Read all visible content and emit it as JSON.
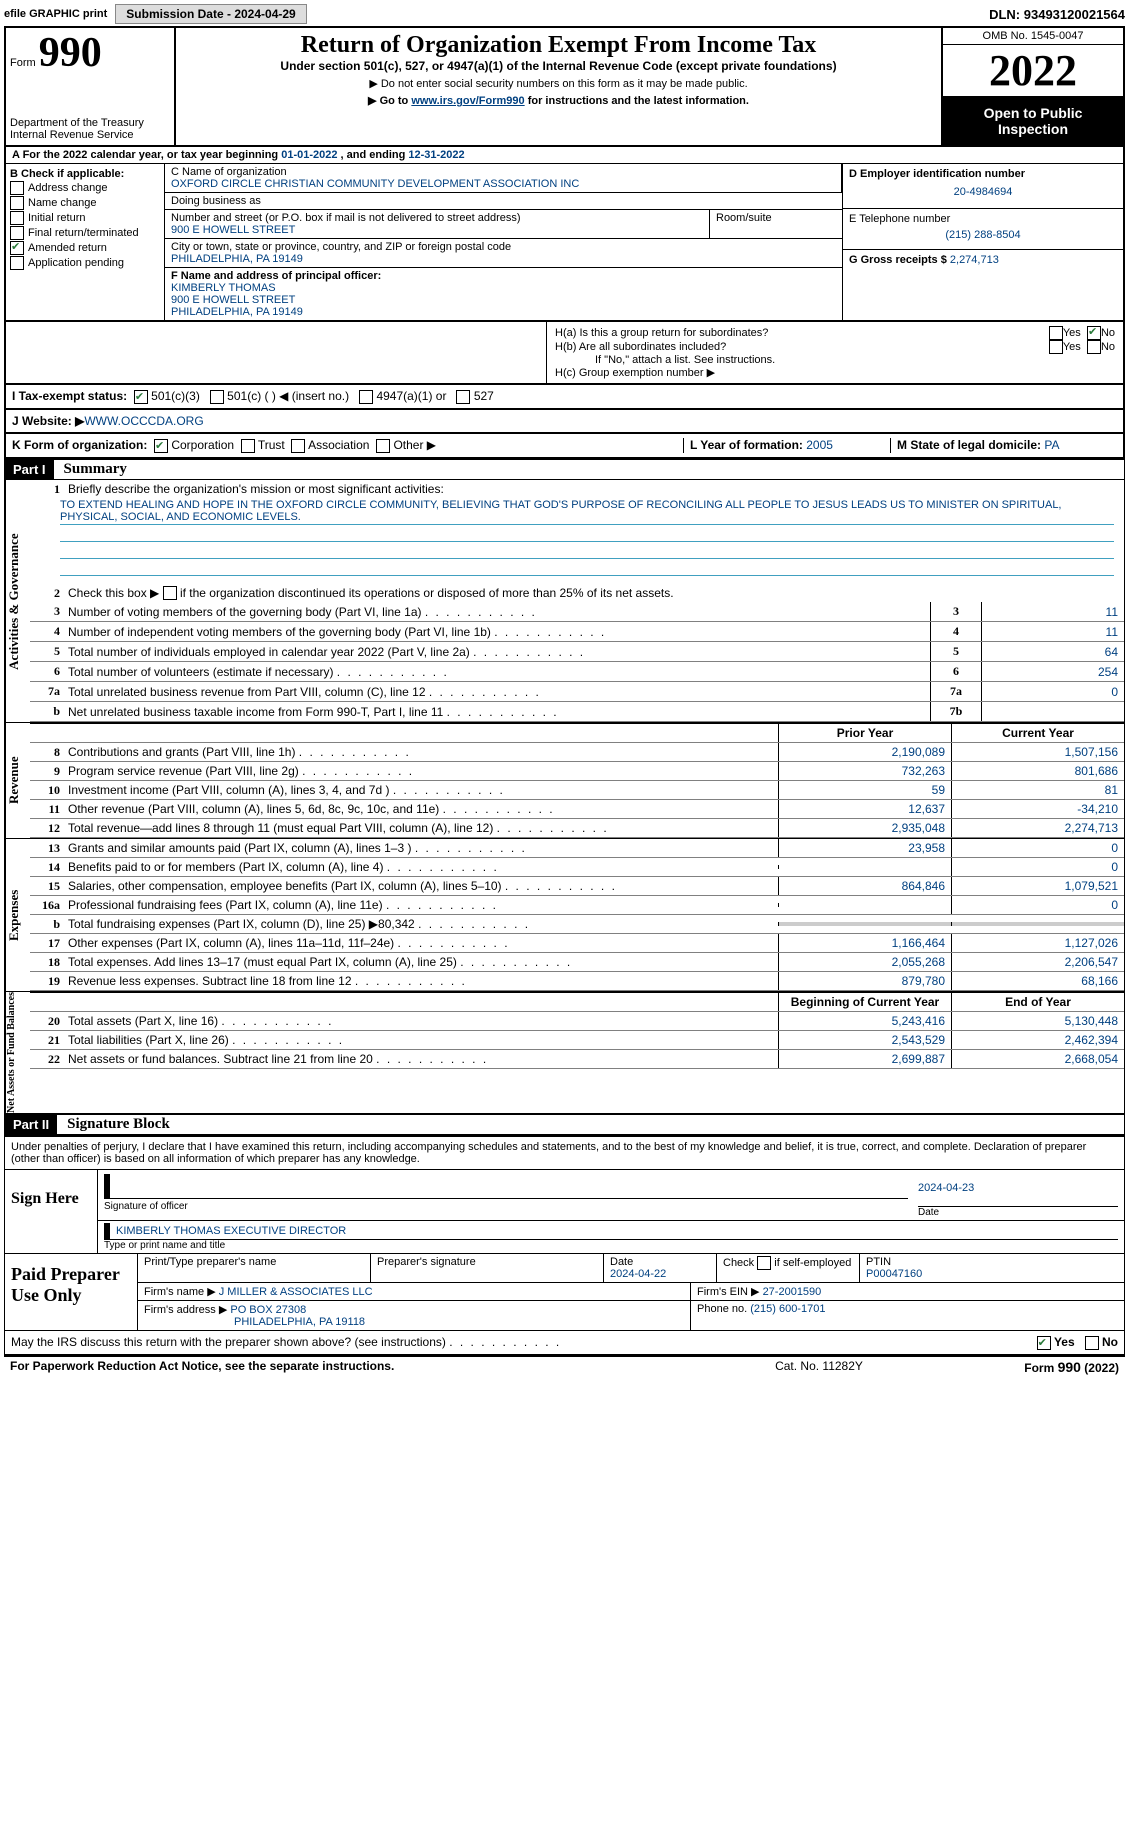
{
  "topbar": {
    "efile": "efile GRAPHIC print ",
    "submission_label": "Submission Date - ",
    "submission_date": "2024-04-29",
    "dln_label": "DLN: ",
    "dln": "93493120021564"
  },
  "header": {
    "form_prefix": "Form",
    "form_number": "990",
    "dept": "Department of the Treasury\nInternal Revenue Service",
    "title": "Return of Organization Exempt From Income Tax",
    "subtitle": "Under section 501(c), 527, or 4947(a)(1) of the Internal Revenue Code (except private foundations)",
    "note1": "▶ Do not enter social security numbers on this form as it may be made public.",
    "note2_prefix": "▶ Go to ",
    "note2_link": "www.irs.gov/Form990",
    "note2_suffix": " for instructions and the latest information.",
    "omb": "OMB No. 1545-0047",
    "year": "2022",
    "open_public": "Open to Public Inspection"
  },
  "calendar": {
    "prefix": "A  For the 2022 calendar year, or tax year beginning ",
    "begin": "01-01-2022",
    "mid": "  , and ending ",
    "end": "12-31-2022"
  },
  "colB": {
    "header": "B Check if applicable:",
    "items": [
      {
        "label": "Address change",
        "checked": false
      },
      {
        "label": "Name change",
        "checked": false
      },
      {
        "label": "Initial return",
        "checked": false
      },
      {
        "label": "Final return/terminated",
        "checked": false
      },
      {
        "label": "Amended return",
        "checked": true
      },
      {
        "label": "Application pending",
        "checked": false
      }
    ]
  },
  "colC": {
    "name_label": "C Name of organization",
    "name": "OXFORD CIRCLE CHRISTIAN COMMUNITY DEVELOPMENT ASSOCIATION INC",
    "dba_label": "Doing business as",
    "dba": "",
    "addr_label": "Number and street (or P.O. box if mail is not delivered to street address)",
    "room_label": "Room/suite",
    "addr": "900 E HOWELL STREET",
    "city_label": "City or town, state or province, country, and ZIP or foreign postal code",
    "city": "PHILADELPHIA, PA  19149",
    "officer_label": "F Name and address of principal officer:",
    "officer_name": "KIMBERLY THOMAS",
    "officer_addr1": "900 E HOWELL STREET",
    "officer_addr2": "PHILADELPHIA, PA  19149"
  },
  "colD": {
    "ein_label": "D Employer identification number",
    "ein": "20-4984694",
    "tel_label": "E Telephone number",
    "tel": "(215) 288-8504",
    "gross_label": "G Gross receipts $ ",
    "gross": "2,274,713"
  },
  "rowH": {
    "ha_label": "H(a)  Is this a group return for subordinates?",
    "ha_yes": "Yes",
    "ha_no": "No",
    "ha_checked": "No",
    "hb_label": "H(b)  Are all subordinates included?",
    "hb_note": "If \"No,\" attach a list. See instructions.",
    "hc_label": "H(c)  Group exemption number ▶"
  },
  "rowI": {
    "label": "I  Tax-exempt status:",
    "opts": [
      "501(c)(3)",
      "501(c) (  ) ◀ (insert no.)",
      "4947(a)(1) or",
      "527"
    ],
    "checked_idx": 0
  },
  "rowJ": {
    "label": "J  Website: ▶  ",
    "value": "WWW.OCCCDA.ORG"
  },
  "rowK": {
    "label": "K Form of organization:",
    "opts": [
      "Corporation",
      "Trust",
      "Association",
      "Other ▶"
    ],
    "checked_idx": 0,
    "L_label": "L Year of formation: ",
    "L_value": "2005",
    "M_label": "M State of legal domicile: ",
    "M_value": "PA"
  },
  "part1": {
    "label": "Part I",
    "title": "Summary"
  },
  "summary": {
    "line1_label": "Briefly describe the organization's mission or most significant activities:",
    "mission": "TO EXTEND HEALING AND HOPE IN THE OXFORD CIRCLE COMMUNITY, BELIEVING THAT GOD'S PURPOSE OF RECONCILING ALL PEOPLE TO JESUS LEADS US TO MINISTER ON SPIRITUAL, PHYSICAL, SOCIAL, AND ECONOMIC LEVELS.",
    "line2": "Check this box ▶    if the organization discontinued its operations or disposed of more than 25% of its net assets.",
    "lines_gov": [
      {
        "n": "3",
        "label": "Number of voting members of the governing body (Part VI, line 1a)",
        "box": "3",
        "val": "11"
      },
      {
        "n": "4",
        "label": "Number of independent voting members of the governing body (Part VI, line 1b)",
        "box": "4",
        "val": "11"
      },
      {
        "n": "5",
        "label": "Total number of individuals employed in calendar year 2022 (Part V, line 2a)",
        "box": "5",
        "val": "64"
      },
      {
        "n": "6",
        "label": "Total number of volunteers (estimate if necessary)",
        "box": "6",
        "val": "254"
      },
      {
        "n": "7a",
        "label": "Total unrelated business revenue from Part VIII, column (C), line 12",
        "box": "7a",
        "val": "0"
      },
      {
        "n": "b",
        "label": "Net unrelated business taxable income from Form 990-T, Part I, line 11",
        "box": "7b",
        "val": ""
      }
    ],
    "prior_year_hdr": "Prior Year",
    "current_year_hdr": "Current Year",
    "revenue_lines": [
      {
        "n": "8",
        "label": "Contributions and grants (Part VIII, line 1h)",
        "prior": "2,190,089",
        "curr": "1,507,156"
      },
      {
        "n": "9",
        "label": "Program service revenue (Part VIII, line 2g)",
        "prior": "732,263",
        "curr": "801,686"
      },
      {
        "n": "10",
        "label": "Investment income (Part VIII, column (A), lines 3, 4, and 7d )",
        "prior": "59",
        "curr": "81"
      },
      {
        "n": "11",
        "label": "Other revenue (Part VIII, column (A), lines 5, 6d, 8c, 9c, 10c, and 11e)",
        "prior": "12,637",
        "curr": "-34,210"
      },
      {
        "n": "12",
        "label": "Total revenue—add lines 8 through 11 (must equal Part VIII, column (A), line 12)",
        "prior": "2,935,048",
        "curr": "2,274,713"
      }
    ],
    "expense_lines": [
      {
        "n": "13",
        "label": "Grants and similar amounts paid (Part IX, column (A), lines 1–3 )",
        "prior": "23,958",
        "curr": "0"
      },
      {
        "n": "14",
        "label": "Benefits paid to or for members (Part IX, column (A), line 4)",
        "prior": "",
        "curr": "0"
      },
      {
        "n": "15",
        "label": "Salaries, other compensation, employee benefits (Part IX, column (A), lines 5–10)",
        "prior": "864,846",
        "curr": "1,079,521"
      },
      {
        "n": "16a",
        "label": "Professional fundraising fees (Part IX, column (A), line 11e)",
        "prior": "",
        "curr": "0"
      },
      {
        "n": "b",
        "label": "Total fundraising expenses (Part IX, column (D), line 25) ▶80,342",
        "prior": "__shaded__",
        "curr": "__shaded__"
      },
      {
        "n": "17",
        "label": "Other expenses (Part IX, column (A), lines 11a–11d, 11f–24e)",
        "prior": "1,166,464",
        "curr": "1,127,026"
      },
      {
        "n": "18",
        "label": "Total expenses. Add lines 13–17 (must equal Part IX, column (A), line 25)",
        "prior": "2,055,268",
        "curr": "2,206,547"
      },
      {
        "n": "19",
        "label": "Revenue less expenses. Subtract line 18 from line 12",
        "prior": "879,780",
        "curr": "68,166"
      }
    ],
    "begin_year_hdr": "Beginning of Current Year",
    "end_year_hdr": "End of Year",
    "net_lines": [
      {
        "n": "20",
        "label": "Total assets (Part X, line 16)",
        "prior": "5,243,416",
        "curr": "5,130,448"
      },
      {
        "n": "21",
        "label": "Total liabilities (Part X, line 26)",
        "prior": "2,543,529",
        "curr": "2,462,394"
      },
      {
        "n": "22",
        "label": "Net assets or fund balances. Subtract line 21 from line 20",
        "prior": "2,699,887",
        "curr": "2,668,054"
      }
    ]
  },
  "sidebars": {
    "gov": "Activities & Governance",
    "rev": "Revenue",
    "exp": "Expenses",
    "net": "Net Assets or Fund Balances"
  },
  "part2": {
    "label": "Part II",
    "title": "Signature Block",
    "penalty": "Under penalties of perjury, I declare that I have examined this return, including accompanying schedules and statements, and to the best of my knowledge and belief, it is true, correct, and complete. Declaration of preparer (other than officer) is based on all information of which preparer has any knowledge.",
    "sign_here": "Sign Here",
    "sig_officer": "Signature of officer",
    "sig_date": "2024-04-23",
    "date_label": "Date",
    "officer_name": "KIMBERLY THOMAS  EXECUTIVE DIRECTOR",
    "type_name": "Type or print name and title",
    "paid_prep": "Paid Preparer Use Only",
    "prep_name_label": "Print/Type preparer's name",
    "prep_name": "",
    "prep_sig_label": "Preparer's signature",
    "prep_date_label": "Date",
    "prep_date": "2024-04-22",
    "self_emp": "Check       if self-employed",
    "ptin_label": "PTIN",
    "ptin": "P00047160",
    "firm_name_label": "Firm's name      ▶ ",
    "firm_name": "J MILLER & ASSOCIATES LLC",
    "firm_ein_label": "Firm's EIN ▶ ",
    "firm_ein": "27-2001590",
    "firm_addr_label": "Firm's address ▶",
    "firm_addr1": "PO BOX 27308",
    "firm_addr2": "PHILADELPHIA, PA  19118",
    "firm_phone_label": "Phone no. ",
    "firm_phone": "(215) 600-1701",
    "discuss": "May the IRS discuss this return with the preparer shown above? (see instructions)",
    "discuss_yes": "Yes",
    "discuss_no": "No",
    "discuss_checked": "Yes"
  },
  "footer": {
    "paperwork": "For Paperwork Reduction Act Notice, see the separate instructions.",
    "cat": "Cat. No. 11282Y",
    "form": "Form 990 (2022)"
  }
}
